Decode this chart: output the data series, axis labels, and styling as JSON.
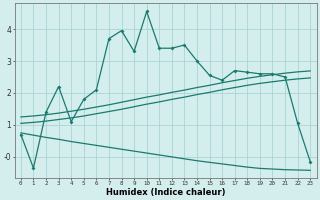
{
  "xlabel": "Humidex (Indice chaleur)",
  "xlim": [
    -0.5,
    23.5
  ],
  "ylim": [
    -0.65,
    4.8
  ],
  "xticks": [
    0,
    1,
    2,
    3,
    4,
    5,
    6,
    7,
    8,
    9,
    10,
    11,
    12,
    13,
    14,
    15,
    16,
    17,
    18,
    19,
    20,
    21,
    22,
    23
  ],
  "yticks": [
    0,
    1,
    2,
    3,
    4
  ],
  "ytick_labels": [
    "-0",
    "1",
    "2",
    "3",
    "4"
  ],
  "bg_color": "#d4eeee",
  "line_color": "#1a7a6e",
  "grid_color": "#aad4d4",
  "line1_x": [
    0,
    1,
    2,
    3,
    4,
    5,
    6,
    7,
    8,
    9,
    10,
    11,
    12,
    13,
    14,
    15,
    16,
    17,
    18,
    19,
    20,
    21,
    22,
    23
  ],
  "line1_y": [
    0.7,
    -0.35,
    1.4,
    2.2,
    1.1,
    1.8,
    2.1,
    3.7,
    3.95,
    3.3,
    4.55,
    3.4,
    3.4,
    3.5,
    3.0,
    2.55,
    2.4,
    2.7,
    2.65,
    2.6,
    2.6,
    2.5,
    1.05,
    -0.15
  ],
  "line2_x": [
    0,
    1,
    2,
    3,
    4,
    5,
    6,
    7,
    8,
    9,
    10,
    11,
    12,
    13,
    14,
    15,
    16,
    17,
    18,
    19,
    20,
    21,
    22,
    23
  ],
  "line2_y": [
    1.05,
    1.08,
    1.12,
    1.17,
    1.22,
    1.28,
    1.35,
    1.42,
    1.49,
    1.57,
    1.65,
    1.72,
    1.8,
    1.87,
    1.95,
    2.02,
    2.1,
    2.17,
    2.24,
    2.3,
    2.35,
    2.4,
    2.44,
    2.47
  ],
  "line3_x": [
    0,
    1,
    2,
    3,
    4,
    5,
    6,
    7,
    8,
    9,
    10,
    11,
    12,
    13,
    14,
    15,
    16,
    17,
    18,
    19,
    20,
    21,
    22,
    23
  ],
  "line3_y": [
    1.25,
    1.28,
    1.32,
    1.37,
    1.43,
    1.49,
    1.56,
    1.63,
    1.71,
    1.79,
    1.87,
    1.94,
    2.02,
    2.09,
    2.17,
    2.24,
    2.32,
    2.39,
    2.46,
    2.52,
    2.57,
    2.62,
    2.66,
    2.69
  ],
  "line4_x": [
    0,
    1,
    2,
    3,
    4,
    5,
    6,
    7,
    8,
    9,
    10,
    11,
    12,
    13,
    14,
    15,
    16,
    17,
    18,
    19,
    20,
    21,
    22,
    23
  ],
  "line4_y": [
    0.75,
    0.68,
    0.61,
    0.55,
    0.48,
    0.42,
    0.36,
    0.3,
    0.24,
    0.18,
    0.12,
    0.06,
    0.0,
    -0.06,
    -0.12,
    -0.17,
    -0.22,
    -0.27,
    -0.32,
    -0.36,
    -0.38,
    -0.4,
    -0.41,
    -0.42
  ]
}
